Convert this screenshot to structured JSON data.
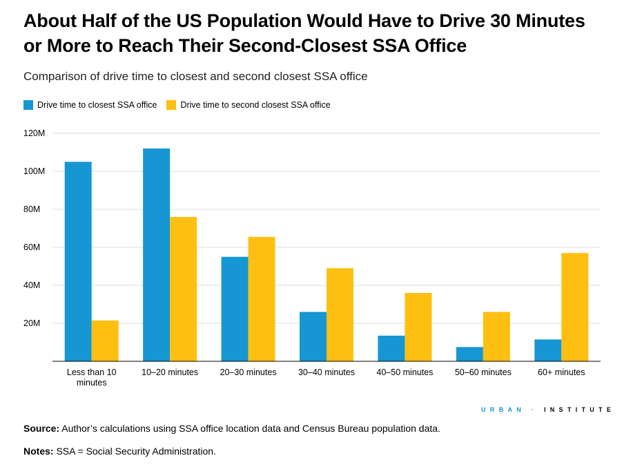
{
  "title": "About Half of the US Population Would Have to Drive 30 Minutes or More to Reach Their Second-Closest SSA Office",
  "subtitle": "Comparison of drive time to closest and second closest SSA office",
  "colors": {
    "closest": "#1696d2",
    "second": "#fdbf11",
    "grid": "#dedede"
  },
  "chart_data": {
    "type": "bar",
    "categories": [
      "Less than 10 minutes",
      "10–20 minutes",
      "20–30 minutes",
      "30–40 minutes",
      "40–50 minutes",
      "50–60 minutes",
      "60+ minutes"
    ],
    "series": [
      {
        "name": "Drive time to closest SSA office",
        "values": [
          105,
          112,
          55,
          26,
          13.5,
          7.5,
          11.5
        ]
      },
      {
        "name": "Drive time to second closest SSA office",
        "values": [
          21.5,
          76,
          65.5,
          49,
          36,
          26,
          57
        ]
      }
    ],
    "ylim": [
      0,
      120
    ],
    "yticks": [
      20,
      40,
      60,
      80,
      100,
      120
    ],
    "ytick_labels": [
      "20M",
      "40M",
      "60M",
      "80M",
      "100M",
      "120M"
    ],
    "grid": true,
    "legend": "top-left"
  },
  "logo": {
    "part1": "URBAN",
    "sep": "·",
    "part2": "INSTITUTE"
  },
  "source": {
    "label": "Source:",
    "text": " Author’s calculations using SSA office location data and Census Bureau population data."
  },
  "notes": {
    "label": "Notes:",
    "text": " SSA = Social Security Administration."
  }
}
